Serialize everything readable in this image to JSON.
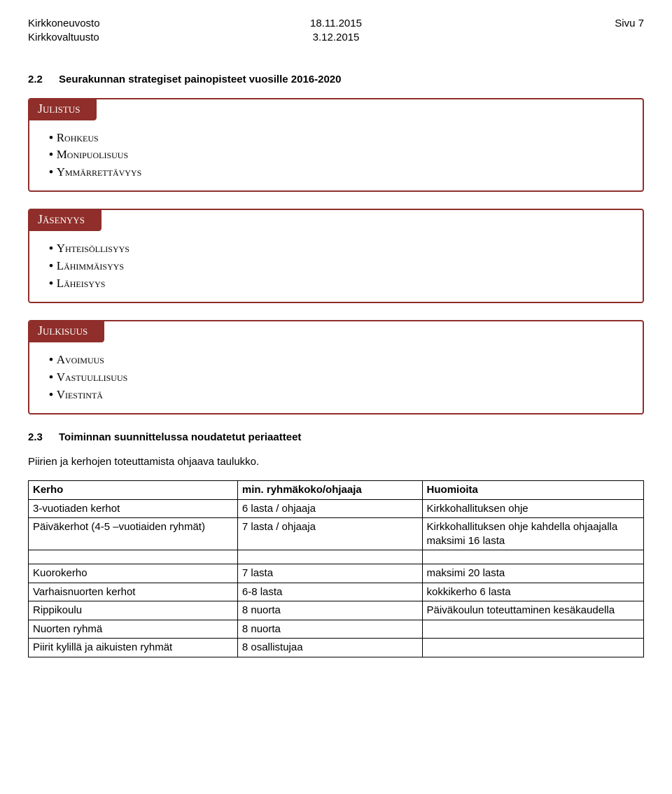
{
  "header": {
    "left_line1": "Kirkkoneuvosto",
    "left_line2": "Kirkkovaltuusto",
    "mid_line1": "18.11.2015",
    "mid_line2": "3.12.2015",
    "right_line1": "Sivu 7"
  },
  "section1": {
    "num": "2.2",
    "title": "Seurakunnan strategiset painopisteet vuosille 2016-2020"
  },
  "callouts": [
    {
      "label": "Julistus",
      "color": "#8f2e2a",
      "items": [
        "Rohkeus",
        "Monipuolisuus",
        "Ymmärrettävyys"
      ]
    },
    {
      "label": "Jäsenyys",
      "color": "#8f2e2a",
      "items": [
        "Yhteisöllisyys",
        "Lähimmäisyys",
        "Läheisyys"
      ]
    },
    {
      "label": "Julkisuus",
      "color": "#8f2e2a",
      "items": [
        "Avoimuus",
        "Vastuullisuus",
        "Viestintä"
      ]
    }
  ],
  "section2": {
    "num": "2.3",
    "title": "Toiminnan suunnittelussa noudatetut periaatteet",
    "body": "Piirien ja kerhojen toteuttamista ohjaava taulukko."
  },
  "table": {
    "columns": [
      "Kerho",
      "min. ryhmäkoko/ohjaaja",
      "Huomioita"
    ],
    "rows": [
      [
        "3-vuotiaden kerhot",
        "6 lasta / ohjaaja",
        "Kirkkohallituksen ohje"
      ],
      [
        "Päiväkerhot (4-5 –vuotiaiden ryhmät)",
        "7 lasta / ohjaaja",
        "Kirkkohallituksen ohje kahdella ohjaajalla maksimi 16 lasta"
      ]
    ],
    "spacer_after": 2,
    "rows2": [
      [
        "Kuorokerho",
        "7 lasta",
        "maksimi 20 lasta"
      ],
      [
        "Varhaisnuorten kerhot",
        "6-8 lasta",
        "kokkikerho 6 lasta"
      ],
      [
        "Rippikoulu",
        "8 nuorta",
        "Päiväkoulun toteuttaminen kesäkaudella"
      ],
      [
        "Nuorten ryhmä",
        "8 nuorta",
        ""
      ],
      [
        "Piirit kylillä ja aikuisten ryhmät",
        "8 osallistujaa",
        ""
      ]
    ]
  }
}
